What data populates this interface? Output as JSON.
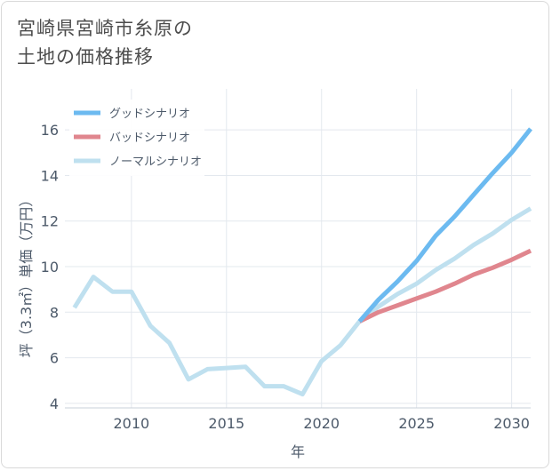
{
  "title": {
    "line1": "宮崎県宮崎市糸原の",
    "line2": "土地の価格推移"
  },
  "chart_data": {
    "type": "line",
    "xlabel": "年",
    "ylabel": "坪（3.3㎡）単価（万円）",
    "xlim": [
      2006.5,
      2031
    ],
    "ylim": [
      3.8,
      17.8
    ],
    "xticks": [
      2010,
      2015,
      2020,
      2025,
      2030
    ],
    "yticks": [
      4,
      6,
      8,
      10,
      12,
      14,
      16
    ],
    "grid": true,
    "legend_position": "top-left",
    "history": {
      "x": [
        2007,
        2008,
        2009,
        2010,
        2011,
        2012,
        2013,
        2014,
        2015,
        2016,
        2017,
        2018,
        2019,
        2020,
        2021,
        2022
      ],
      "values": [
        8.2,
        9.55,
        8.9,
        8.9,
        7.4,
        6.65,
        5.05,
        5.5,
        5.55,
        5.6,
        4.75,
        4.75,
        4.4,
        5.85,
        6.55,
        7.6
      ]
    },
    "series": [
      {
        "name": "グッドシナリオ",
        "color": "#6cbaf0",
        "x": [
          2022,
          2023,
          2024,
          2025,
          2026,
          2027,
          2028,
          2029,
          2030,
          2031
        ],
        "values": [
          7.6,
          8.55,
          9.35,
          10.25,
          11.35,
          12.2,
          13.15,
          14.1,
          15.0,
          16.05
        ]
      },
      {
        "name": "バッドシナリオ",
        "color": "#e0868e",
        "x": [
          2022,
          2023,
          2024,
          2025,
          2026,
          2027,
          2028,
          2029,
          2030,
          2031
        ],
        "values": [
          7.6,
          8.0,
          8.3,
          8.6,
          8.9,
          9.25,
          9.65,
          9.95,
          10.3,
          10.7
        ]
      },
      {
        "name": "ノーマルシナリオ",
        "color": "#bfe0ef",
        "x": [
          2007,
          2008,
          2009,
          2010,
          2011,
          2012,
          2013,
          2014,
          2015,
          2016,
          2017,
          2018,
          2019,
          2020,
          2021,
          2022,
          2023,
          2024,
          2025,
          2026,
          2027,
          2028,
          2029,
          2030,
          2031
        ],
        "values": [
          8.2,
          9.55,
          8.9,
          8.9,
          7.4,
          6.65,
          5.05,
          5.5,
          5.55,
          5.6,
          4.75,
          4.75,
          4.4,
          5.85,
          6.55,
          7.6,
          8.25,
          8.8,
          9.25,
          9.85,
          10.35,
          10.95,
          11.45,
          12.05,
          12.55
        ]
      }
    ]
  }
}
